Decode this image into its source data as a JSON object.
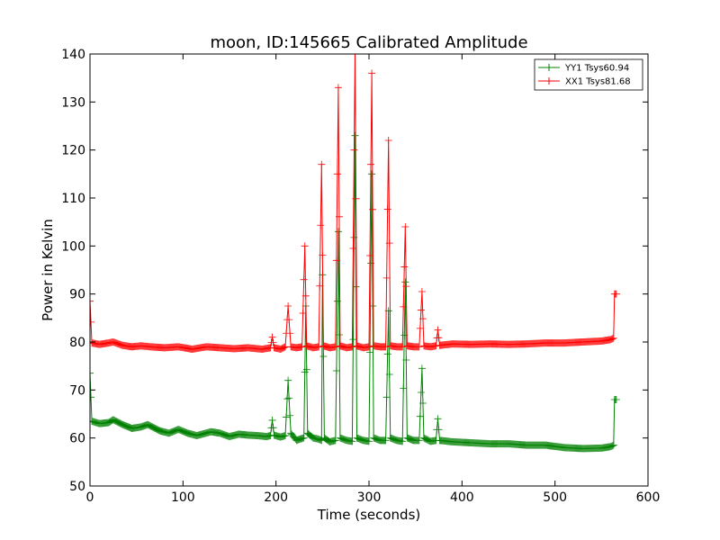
{
  "chart_data": {
    "type": "line",
    "title": "moon, ID:145665 Calibrated Amplitude",
    "xlabel": "Time (seconds)",
    "ylabel": "Power in Kelvin",
    "xlim": [
      0,
      600
    ],
    "ylim": [
      50,
      140
    ],
    "xticks": [
      "0",
      "100",
      "200",
      "300",
      "400",
      "500",
      "600"
    ],
    "yticks": [
      "50",
      "60",
      "70",
      "80",
      "90",
      "100",
      "110",
      "120",
      "130",
      "140"
    ],
    "grid": false,
    "legend_position": "top-right",
    "marker": "+",
    "series": [
      {
        "name": "YY1 Tsys60.94",
        "color": "#008000",
        "points": [
          [
            0,
            73.5
          ],
          [
            2,
            63.5
          ],
          [
            10,
            63.0
          ],
          [
            20,
            63.2
          ],
          [
            25,
            63.8
          ],
          [
            35,
            62.8
          ],
          [
            45,
            62.0
          ],
          [
            55,
            62.3
          ],
          [
            62,
            62.8
          ],
          [
            75,
            61.5
          ],
          [
            85,
            61.0
          ],
          [
            95,
            61.8
          ],
          [
            105,
            61.0
          ],
          [
            115,
            60.5
          ],
          [
            130,
            61.3
          ],
          [
            140,
            61.0
          ],
          [
            150,
            60.3
          ],
          [
            160,
            60.8
          ],
          [
            170,
            60.6
          ],
          [
            180,
            60.5
          ],
          [
            190,
            60.3
          ],
          [
            194,
            60.5
          ],
          [
            196,
            63.7
          ],
          [
            198,
            60.6
          ],
          [
            205,
            60.2
          ],
          [
            210,
            60.5
          ],
          [
            213,
            72.0
          ],
          [
            216,
            61.0
          ],
          [
            222,
            59.5
          ],
          [
            226,
            59.8
          ],
          [
            230,
            60.0
          ],
          [
            232,
            87.5
          ],
          [
            234,
            61.0
          ],
          [
            240,
            60.0
          ],
          [
            245,
            59.8
          ],
          [
            249,
            59.5
          ],
          [
            250,
            94.0
          ],
          [
            252,
            60.0
          ],
          [
            258,
            59.2
          ],
          [
            264,
            59.5
          ],
          [
            267,
            103.0
          ],
          [
            269,
            60.0
          ],
          [
            276,
            59.5
          ],
          [
            282,
            59.3
          ],
          [
            285,
            123.0
          ],
          [
            287,
            60.0
          ],
          [
            294,
            59.5
          ],
          [
            300,
            59.3
          ],
          [
            303,
            115.0
          ],
          [
            305,
            60.0
          ],
          [
            312,
            59.5
          ],
          [
            318,
            59.5
          ],
          [
            321,
            86.5
          ],
          [
            323,
            60.0
          ],
          [
            330,
            59.5
          ],
          [
            336,
            59.3
          ],
          [
            339,
            92.5
          ],
          [
            341,
            60.0
          ],
          [
            348,
            59.5
          ],
          [
            354,
            59.5
          ],
          [
            357,
            74.5
          ],
          [
            359,
            60.0
          ],
          [
            366,
            59.3
          ],
          [
            372,
            59.5
          ],
          [
            374,
            64.0
          ],
          [
            376,
            59.5
          ],
          [
            390,
            59.2
          ],
          [
            410,
            59.0
          ],
          [
            430,
            58.8
          ],
          [
            450,
            58.8
          ],
          [
            470,
            58.5
          ],
          [
            490,
            58.5
          ],
          [
            510,
            58.0
          ],
          [
            530,
            57.8
          ],
          [
            550,
            57.9
          ],
          [
            560,
            58.2
          ],
          [
            563,
            58.5
          ],
          [
            564,
            68.0
          ],
          [
            566,
            68.0
          ]
        ]
      },
      {
        "name": "XX1 Tsys81.68",
        "color": "#ff0000",
        "points": [
          [
            0,
            88.5
          ],
          [
            2,
            79.8
          ],
          [
            10,
            79.5
          ],
          [
            20,
            79.8
          ],
          [
            25,
            80.0
          ],
          [
            35,
            79.3
          ],
          [
            45,
            79.0
          ],
          [
            55,
            79.2
          ],
          [
            65,
            79.0
          ],
          [
            80,
            78.8
          ],
          [
            95,
            79.0
          ],
          [
            110,
            78.5
          ],
          [
            125,
            79.0
          ],
          [
            140,
            78.8
          ],
          [
            155,
            78.6
          ],
          [
            170,
            78.8
          ],
          [
            185,
            78.5
          ],
          [
            194,
            78.8
          ],
          [
            196,
            81.0
          ],
          [
            198,
            78.8
          ],
          [
            205,
            78.5
          ],
          [
            210,
            79.0
          ],
          [
            213,
            87.5
          ],
          [
            216,
            79.0
          ],
          [
            222,
            78.8
          ],
          [
            228,
            79.0
          ],
          [
            231,
            100.0
          ],
          [
            233,
            79.2
          ],
          [
            240,
            78.8
          ],
          [
            246,
            79.0
          ],
          [
            249,
            117.0
          ],
          [
            251,
            79.2
          ],
          [
            258,
            78.8
          ],
          [
            264,
            79.0
          ],
          [
            267,
            133.0
          ],
          [
            269,
            79.2
          ],
          [
            276,
            78.8
          ],
          [
            282,
            79.0
          ],
          [
            285,
            140.5
          ],
          [
            287,
            79.2
          ],
          [
            294,
            78.8
          ],
          [
            300,
            79.0
          ],
          [
            303,
            136.0
          ],
          [
            305,
            79.2
          ],
          [
            312,
            79.0
          ],
          [
            318,
            79.0
          ],
          [
            321,
            122.0
          ],
          [
            323,
            79.2
          ],
          [
            330,
            79.0
          ],
          [
            336,
            79.0
          ],
          [
            339,
            104.0
          ],
          [
            341,
            79.2
          ],
          [
            348,
            79.0
          ],
          [
            354,
            79.0
          ],
          [
            357,
            90.5
          ],
          [
            359,
            79.2
          ],
          [
            366,
            79.0
          ],
          [
            372,
            79.2
          ],
          [
            374,
            82.5
          ],
          [
            376,
            79.3
          ],
          [
            390,
            79.6
          ],
          [
            410,
            79.5
          ],
          [
            430,
            79.6
          ],
          [
            450,
            79.5
          ],
          [
            470,
            79.6
          ],
          [
            490,
            79.8
          ],
          [
            510,
            79.8
          ],
          [
            530,
            80.0
          ],
          [
            550,
            80.2
          ],
          [
            560,
            80.5
          ],
          [
            563,
            80.8
          ],
          [
            564,
            90.0
          ],
          [
            566,
            90.0
          ]
        ]
      }
    ]
  }
}
